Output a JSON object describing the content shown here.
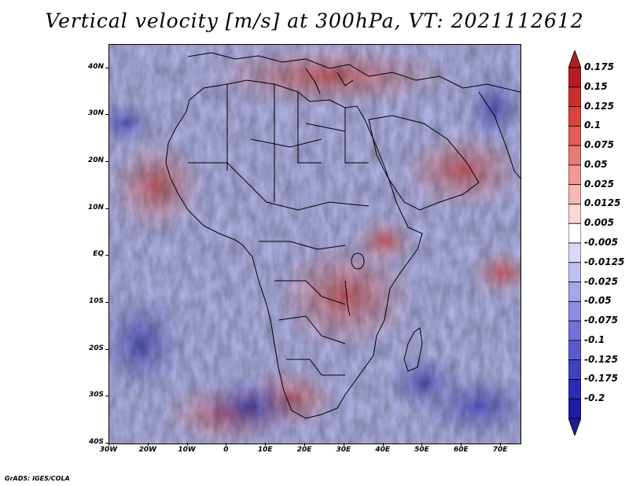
{
  "title": "Vertical velocity [m/s] at 300hPa, VT: 2021112612",
  "footer": "GrADS: IGES/COLA",
  "map": {
    "lat_labels": [
      "40N",
      "30N",
      "20N",
      "10N",
      "EQ",
      "10S",
      "20S",
      "30S",
      "40S"
    ],
    "lon_labels": [
      "30W",
      "20W",
      "10W",
      "0",
      "10E",
      "20E",
      "30E",
      "40E",
      "50E",
      "60E",
      "70E"
    ],
    "lat_range": [
      -40,
      45
    ],
    "lon_range": [
      -30,
      75
    ]
  },
  "colorbar": {
    "levels": [
      "0.175",
      "0.15",
      "0.125",
      "0.1",
      "0.075",
      "0.05",
      "0.025",
      "0.0125",
      "0.005",
      "-0.005",
      "-0.0125",
      "-0.025",
      "-0.05",
      "-0.075",
      "-0.1",
      "-0.125",
      "-0.175",
      "-0.2"
    ],
    "colors": [
      "#b21e24",
      "#c9302c",
      "#d9443f",
      "#e35d58",
      "#ea7a74",
      "#f09a95",
      "#f5b8b4",
      "#f9d7d4",
      "#ffffff",
      "#d9d9f7",
      "#bfbff0",
      "#a5a5e8",
      "#8c8ce0",
      "#7272d6",
      "#5a5acb",
      "#4141bf",
      "#2b2bb2",
      "#1d1d9e"
    ],
    "top_color": "#b21e24",
    "bottom_color": "#1e1e94"
  }
}
